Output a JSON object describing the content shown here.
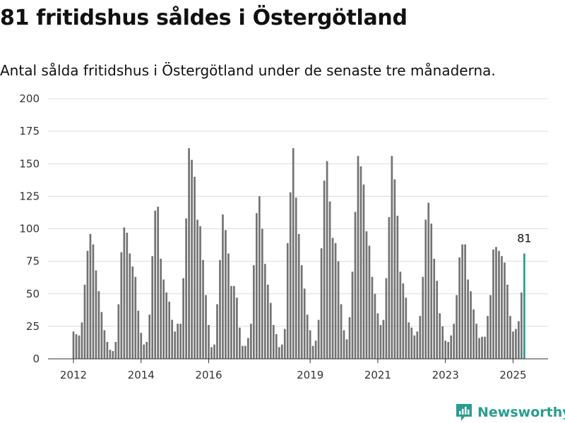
{
  "title": "81 fritidshus såldes i Östergötland",
  "subtitle": "Antal sålda fritidshus i Östergötland under de senaste tre månaderna.",
  "brand": {
    "name": "Newsworthy",
    "color": "#2a9d8f"
  },
  "chart_data": {
    "type": "bar",
    "y_ticks": [
      0,
      25,
      50,
      75,
      100,
      125,
      150,
      175,
      200
    ],
    "x_tick_labels": [
      "2012",
      "2014",
      "2016",
      "2019",
      "2021",
      "2023",
      "2025"
    ],
    "x_tick_index": [
      0,
      24,
      48,
      84,
      108,
      132,
      156
    ],
    "ylim": [
      0,
      200
    ],
    "grid": true,
    "bar_color": "#737373",
    "highlight_color": "#2a9d8f",
    "start": "2012-01",
    "end": "2025-05",
    "values": [
      21,
      19,
      18,
      28,
      57,
      83,
      96,
      88,
      68,
      52,
      36,
      22,
      13,
      7,
      6,
      13,
      42,
      82,
      101,
      97,
      81,
      71,
      63,
      37,
      20,
      11,
      13,
      34,
      79,
      114,
      117,
      77,
      61,
      51,
      44,
      30,
      21,
      27,
      27,
      62,
      108,
      162,
      153,
      140,
      107,
      102,
      76,
      49,
      26,
      9,
      11,
      42,
      76,
      111,
      99,
      81,
      56,
      56,
      47,
      24,
      10,
      10,
      16,
      27,
      72,
      112,
      125,
      100,
      73,
      57,
      43,
      26,
      19,
      9,
      11,
      23,
      89,
      128,
      162,
      124,
      96,
      72,
      54,
      34,
      22,
      10,
      14,
      30,
      85,
      137,
      152,
      121,
      93,
      89,
      75,
      42,
      22,
      15,
      32,
      67,
      113,
      156,
      148,
      134,
      98,
      87,
      63,
      50,
      35,
      26,
      30,
      62,
      109,
      156,
      138,
      110,
      67,
      58,
      47,
      28,
      24,
      18,
      21,
      33,
      63,
      107,
      120,
      104,
      77,
      60,
      35,
      25,
      14,
      13,
      18,
      27,
      49,
      78,
      88,
      88,
      61,
      52,
      38,
      27,
      16,
      17,
      17,
      33,
      49,
      84,
      86,
      83,
      79,
      74,
      57,
      33,
      21,
      23,
      29,
      51,
      81
    ],
    "highlight_label": "81"
  }
}
